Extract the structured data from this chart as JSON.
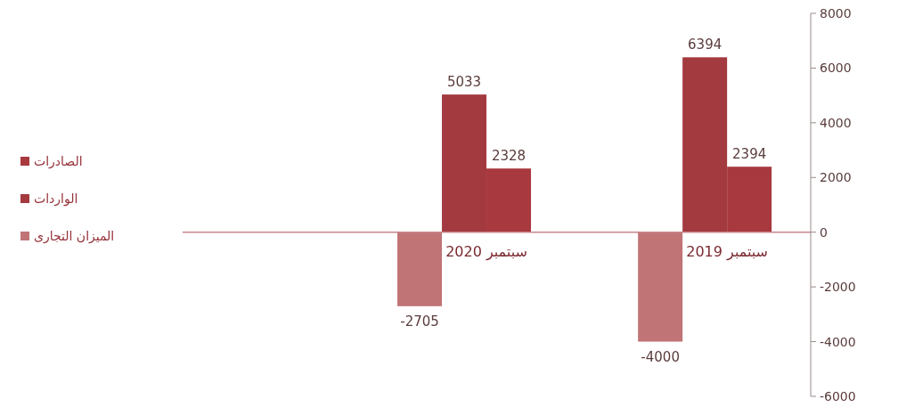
{
  "chart_data": {
    "type": "bar",
    "categories": [
      "سبتمبر 2020",
      "سبتمبر 2019"
    ],
    "series": [
      {
        "name": "الصادرات",
        "color": "#a8393f",
        "values": [
          2328,
          2394
        ]
      },
      {
        "name": "الواردات",
        "color": "#a33a40",
        "values": [
          5033,
          6394
        ]
      },
      {
        "name": "الميزان التجارى",
        "color": "#c07476",
        "values": [
          -2705,
          -4000
        ]
      }
    ],
    "ylim": [
      -6000,
      8000
    ],
    "yticks": [
      -6000,
      -4000,
      -2000,
      0,
      2000,
      4000,
      6000,
      8000
    ],
    "data_labels": true,
    "legend": "left"
  }
}
